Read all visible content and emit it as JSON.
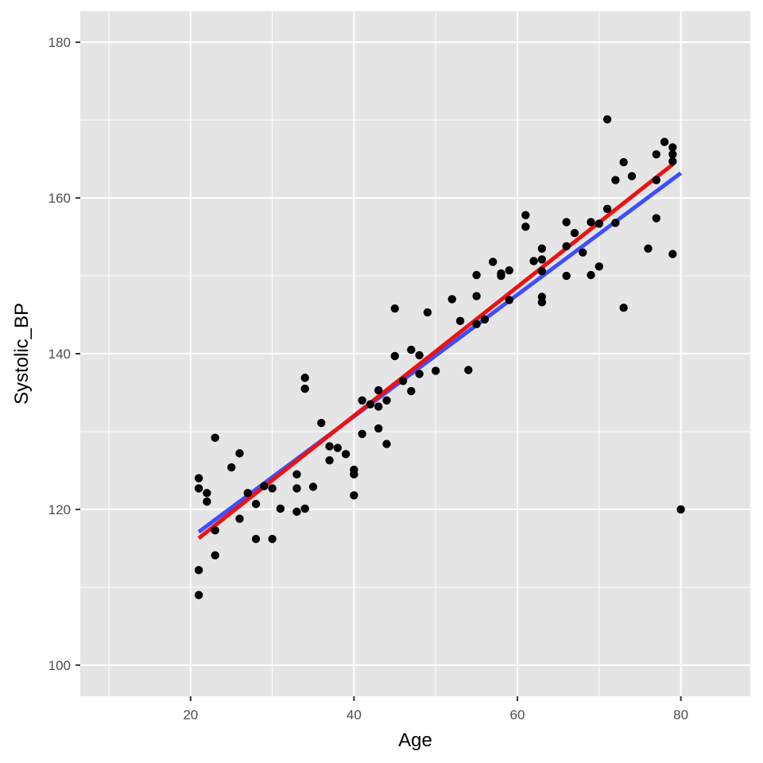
{
  "chart_data": {
    "type": "scatter",
    "title": "",
    "xlabel": "Age",
    "ylabel": "Systolic_BP",
    "xlim": [
      6.5,
      88.5
    ],
    "ylim": [
      96,
      184
    ],
    "x_ticks": [
      20,
      40,
      60,
      80
    ],
    "y_ticks": [
      100,
      120,
      140,
      160,
      180
    ],
    "grid": true,
    "legend": "none",
    "colors": {
      "panel": "#e5e5e5",
      "grid": "#ffffff",
      "points": "#000000",
      "line_1": "#3d4eff",
      "line_2": "#ee1111"
    },
    "points": [
      [
        21,
        124.0
      ],
      [
        21,
        122.7
      ],
      [
        21,
        112.2
      ],
      [
        21,
        109.0
      ],
      [
        22,
        122.1
      ],
      [
        22,
        121.0
      ],
      [
        23,
        129.2
      ],
      [
        23,
        117.3
      ],
      [
        23,
        114.1
      ],
      [
        25,
        125.4
      ],
      [
        26,
        127.2
      ],
      [
        26,
        118.8
      ],
      [
        27,
        122.1
      ],
      [
        28,
        120.7
      ],
      [
        28,
        116.2
      ],
      [
        29,
        123.0
      ],
      [
        30,
        122.7
      ],
      [
        30,
        116.2
      ],
      [
        31,
        120.1
      ],
      [
        33,
        124.5
      ],
      [
        33,
        122.7
      ],
      [
        33,
        119.7
      ],
      [
        34,
        136.9
      ],
      [
        34,
        135.5
      ],
      [
        34,
        120.1
      ],
      [
        35,
        122.9
      ],
      [
        36,
        131.1
      ],
      [
        37,
        128.1
      ],
      [
        37,
        126.3
      ],
      [
        38,
        127.9
      ],
      [
        39,
        127.1
      ],
      [
        40,
        125.1
      ],
      [
        40,
        124.5
      ],
      [
        40,
        121.8
      ],
      [
        41,
        134.0
      ],
      [
        41,
        129.7
      ],
      [
        42,
        133.5
      ],
      [
        43,
        135.3
      ],
      [
        43,
        133.2
      ],
      [
        43,
        130.4
      ],
      [
        44,
        134.0
      ],
      [
        44,
        128.4
      ],
      [
        45,
        145.8
      ],
      [
        45,
        139.7
      ],
      [
        46,
        136.5
      ],
      [
        47,
        140.5
      ],
      [
        47,
        135.2
      ],
      [
        48,
        139.8
      ],
      [
        48,
        137.4
      ],
      [
        49,
        145.3
      ],
      [
        50,
        137.8
      ],
      [
        52,
        147.0
      ],
      [
        53,
        144.2
      ],
      [
        54,
        137.9
      ],
      [
        55,
        150.1
      ],
      [
        55,
        147.4
      ],
      [
        55,
        143.8
      ],
      [
        56,
        144.4
      ],
      [
        57,
        151.8
      ],
      [
        58,
        150.3
      ],
      [
        58,
        150.0
      ],
      [
        59,
        150.7
      ],
      [
        59,
        146.9
      ],
      [
        61,
        157.8
      ],
      [
        61,
        156.3
      ],
      [
        62,
        151.9
      ],
      [
        63,
        153.5
      ],
      [
        63,
        152.1
      ],
      [
        63,
        150.6
      ],
      [
        63,
        147.3
      ],
      [
        63,
        146.6
      ],
      [
        66,
        156.9
      ],
      [
        66,
        153.8
      ],
      [
        66,
        150.0
      ],
      [
        67,
        155.5
      ],
      [
        68,
        153.0
      ],
      [
        69,
        156.9
      ],
      [
        69,
        150.1
      ],
      [
        70,
        156.7
      ],
      [
        70,
        151.2
      ],
      [
        71,
        170.1
      ],
      [
        71,
        158.6
      ],
      [
        72,
        162.3
      ],
      [
        72,
        156.8
      ],
      [
        73,
        164.6
      ],
      [
        73,
        145.9
      ],
      [
        74,
        162.8
      ],
      [
        76,
        153.5
      ],
      [
        77,
        165.6
      ],
      [
        77,
        162.3
      ],
      [
        77,
        157.4
      ],
      [
        78,
        167.2
      ],
      [
        79,
        166.5
      ],
      [
        79,
        165.6
      ],
      [
        79,
        164.7
      ],
      [
        79,
        152.8
      ],
      [
        80,
        120.0
      ]
    ],
    "fit_lines": [
      {
        "x": [
          21,
          80
        ],
        "y": [
          117.1,
          163.2
        ]
      },
      {
        "x": [
          21,
          79
        ],
        "y": [
          116.3,
          164.3
        ]
      }
    ]
  }
}
